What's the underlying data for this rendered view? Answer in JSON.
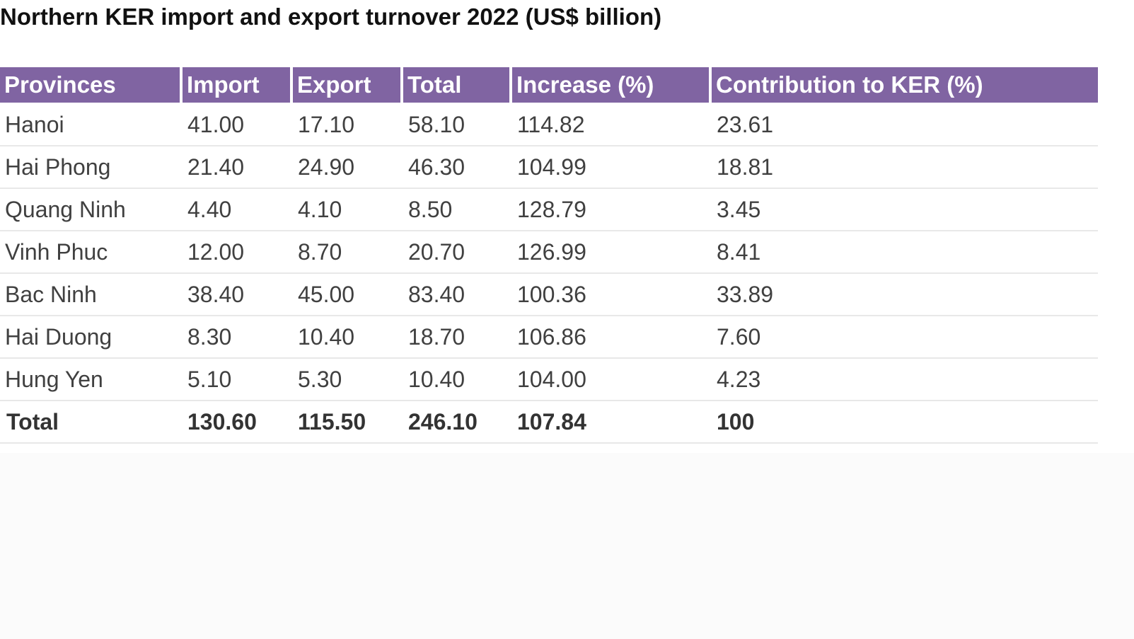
{
  "chart_data": {
    "type": "table",
    "title": "Northern KER import and export turnover 2022 (US$ billion)",
    "columns": [
      "Provinces",
      "Import",
      "Export",
      "Total",
      "Increase (%)",
      "Contribution to KER (%)"
    ],
    "rows": [
      [
        "Hanoi",
        "41.00",
        "17.10",
        "58.10",
        "114.82",
        "23.61"
      ],
      [
        "Hai Phong",
        "21.40",
        "24.90",
        "46.30",
        "104.99",
        "18.81"
      ],
      [
        "Quang Ninh",
        "4.40",
        "4.10",
        "8.50",
        "128.79",
        "3.45"
      ],
      [
        "Vinh Phuc",
        "12.00",
        "8.70",
        "20.70",
        "126.99",
        "8.41"
      ],
      [
        "Bac Ninh",
        "38.40",
        "45.00",
        "83.40",
        "100.36",
        "33.89"
      ],
      [
        "Hai Duong",
        "8.30",
        "10.40",
        "18.70",
        "106.86",
        "7.60"
      ],
      [
        "Hung Yen",
        "5.10",
        "5.30",
        "10.40",
        "104.00",
        "4.23"
      ]
    ],
    "total_row": [
      "Total",
      "130.60",
      "115.50",
      "246.10",
      "107.84",
      "100"
    ],
    "header_color": "#8064a2",
    "header_text_color": "#ffffff",
    "grid": "horizontal row separators"
  }
}
